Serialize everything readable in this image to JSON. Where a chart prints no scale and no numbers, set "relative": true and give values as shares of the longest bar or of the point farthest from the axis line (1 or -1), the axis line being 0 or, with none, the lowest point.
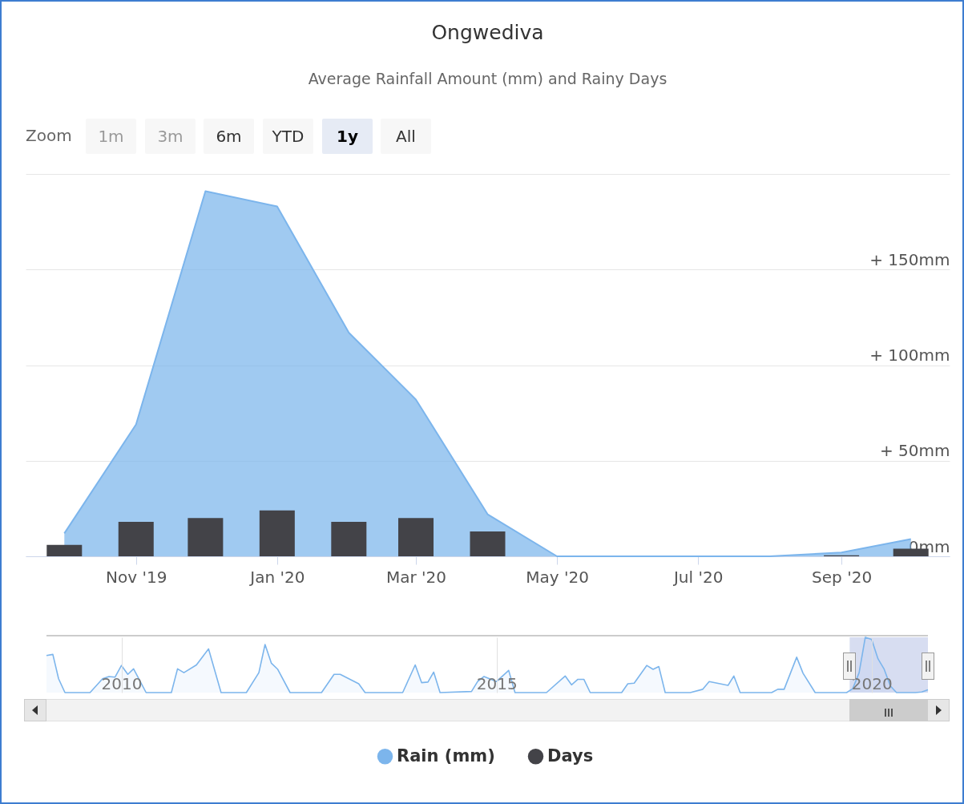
{
  "chart_data": [
    {
      "type": "area",
      "title": "Ongwediva",
      "subtitle": "Average Rainfall Amount (mm) and Rainy Days",
      "annotations": [
        "Zoom",
        "1m",
        "3m",
        "6m",
        "YTD",
        "1y",
        "All"
      ],
      "x": [
        "2019-10",
        "2019-11",
        "2019-12",
        "2020-01",
        "2020-02",
        "2020-03",
        "2020-04",
        "2020-05",
        "2020-06",
        "2020-07",
        "2020-08",
        "2020-09",
        "2020-10"
      ],
      "series": [
        {
          "name": "Rain (mm)",
          "type": "area",
          "color": "#7cb5ec",
          "values": [
            12,
            69,
            191,
            183,
            117,
            82,
            22,
            0,
            0,
            0,
            0,
            2,
            9
          ]
        },
        {
          "name": "Days",
          "type": "bar",
          "color": "#434348",
          "values": [
            6,
            18,
            20,
            24,
            18,
            20,
            13,
            0,
            0,
            0,
            0,
            0.5,
            4
          ]
        }
      ],
      "xlim": [
        "2019-09-16",
        "2020-10-16"
      ],
      "xticks": [
        {
          "value": "2019-11",
          "label": "Nov '19"
        },
        {
          "value": "2020-01",
          "label": "Jan '20"
        },
        {
          "value": "2020-03",
          "label": "Mar '20"
        },
        {
          "value": "2020-05",
          "label": "May '20"
        },
        {
          "value": "2020-07",
          "label": "Jul '20"
        },
        {
          "value": "2020-09",
          "label": "Sep '20"
        }
      ],
      "ylim": [
        0,
        200
      ],
      "yticks": [
        {
          "value": 0,
          "label": "0mm"
        },
        {
          "value": 50,
          "label": "+ 50mm"
        },
        {
          "value": 100,
          "label": "+ 100mm"
        },
        {
          "value": 150,
          "label": "+ 150mm"
        },
        {
          "value": 200,
          "label": null
        }
      ],
      "grid": "y",
      "legend": "bottom"
    },
    {
      "type": "area",
      "relative": true,
      "color": "#7cb5ec",
      "x": [
        "2009-01",
        "2009-02",
        "2009-03",
        "2009-04",
        "2009-08",
        "2009-10",
        "2009-11",
        "2009-12",
        "2010-01",
        "2010-02",
        "2010-03",
        "2010-05",
        "2010-09",
        "2010-10",
        "2010-11",
        "2011-01",
        "2011-03",
        "2011-05",
        "2011-09",
        "2011-11",
        "2011-12",
        "2012-01",
        "2012-02",
        "2012-04",
        "2012-09",
        "2012-11",
        "2012-12",
        "2013-03",
        "2013-04",
        "2013-10",
        "2013-12",
        "2014-01",
        "2014-02",
        "2014-03",
        "2014-04",
        "2014-09",
        "2014-10",
        "2014-11",
        "2015-01",
        "2015-03",
        "2015-04",
        "2015-09",
        "2015-12",
        "2016-01",
        "2016-02",
        "2016-03",
        "2016-04",
        "2016-09",
        "2016-10",
        "2016-11",
        "2017-01",
        "2017-02",
        "2017-03",
        "2017-04",
        "2017-08",
        "2017-10",
        "2017-11",
        "2018-02",
        "2018-03",
        "2018-04",
        "2018-09",
        "2018-10",
        "2018-11",
        "2019-01",
        "2019-02",
        "2019-04",
        "2019-09",
        "2019-10",
        "2019-11",
        "2019-12",
        "2020-01",
        "2020-02",
        "2020-03",
        "2020-04",
        "2020-05",
        "2020-08",
        "2020-09",
        "2020-10"
      ],
      "values": [
        0.67,
        0.69,
        0.25,
        0,
        0,
        0.25,
        0.29,
        0.28,
        0.49,
        0.33,
        0.43,
        0,
        0,
        0.43,
        0.36,
        0.5,
        0.79,
        0,
        0,
        0.36,
        0.87,
        0.53,
        0.42,
        0,
        0,
        0.33,
        0.33,
        0.16,
        0,
        0,
        0.5,
        0.18,
        0.19,
        0.37,
        0,
        0.02,
        0.2,
        0.29,
        0.2,
        0.4,
        0,
        0,
        0.3,
        0.14,
        0.24,
        0.24,
        0,
        0,
        0.16,
        0.17,
        0.49,
        0.42,
        0.47,
        0,
        0,
        0.06,
        0.2,
        0.13,
        0.3,
        0,
        0,
        0.06,
        0.06,
        0.64,
        0.35,
        0,
        0,
        0.07,
        0.36,
        1,
        0.96,
        0.61,
        0.43,
        0.12,
        0,
        0,
        0.01,
        0.05
      ],
      "xlim": [
        "2009-01",
        "2020-10"
      ],
      "xticks": [
        {
          "value": "2010",
          "label": "2010"
        },
        {
          "value": "2015",
          "label": "2015"
        },
        {
          "value": "2020",
          "label": "2020"
        }
      ],
      "grid": "x",
      "tick_labels": "x",
      "bands": [
        {
          "axis": "x",
          "from": "2019-09-16",
          "to": "2020-10",
          "color": "#c9d2ec"
        }
      ]
    }
  ]
}
